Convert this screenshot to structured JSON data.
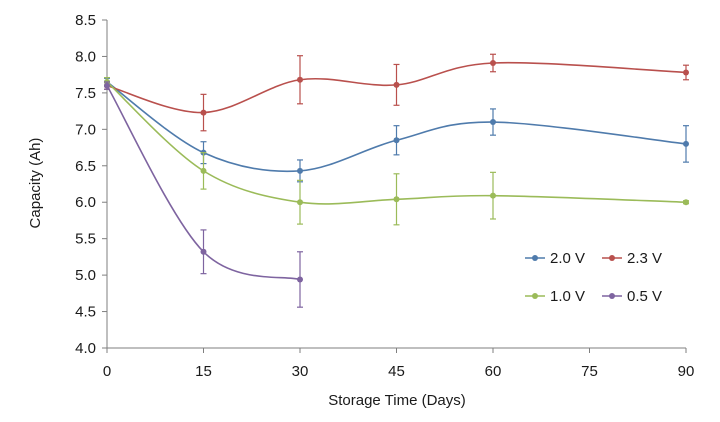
{
  "chart_data": {
    "type": "line",
    "xlabel": "Storage Time (Days)",
    "ylabel": "Capacity (Ah)",
    "xlim": [
      0,
      90
    ],
    "ylim": [
      4.0,
      8.5
    ],
    "x_ticks": [
      0,
      15,
      30,
      45,
      60,
      75,
      90
    ],
    "y_ticks": [
      "4.0",
      "4.5",
      "5.0",
      "5.5",
      "6.0",
      "6.5",
      "7.0",
      "7.5",
      "8.0",
      "8.5"
    ],
    "grid": false,
    "smooth": true,
    "legend_placement": "bottom-right",
    "series": [
      {
        "name": "2.0 V",
        "color": "#4f7bac",
        "x": [
          0,
          15,
          30,
          45,
          60,
          90
        ],
        "y": [
          7.65,
          6.68,
          6.43,
          6.85,
          7.1,
          6.8
        ],
        "err": [
          0.05,
          0.15,
          0.15,
          0.2,
          0.18,
          0.25
        ]
      },
      {
        "name": "2.3 V",
        "color": "#b9504d",
        "x": [
          0,
          15,
          30,
          45,
          60,
          90
        ],
        "y": [
          7.6,
          7.23,
          7.68,
          7.61,
          7.91,
          7.78
        ],
        "err": [
          0.05,
          0.25,
          0.33,
          0.28,
          0.12,
          0.1
        ]
      },
      {
        "name": "1.0 V",
        "color": "#9bbb59",
        "x": [
          0,
          15,
          30,
          45,
          60,
          90
        ],
        "y": [
          7.65,
          6.43,
          6.0,
          6.04,
          6.09,
          6.0
        ],
        "err": [
          0.06,
          0.25,
          0.3,
          0.35,
          0.32,
          0.02
        ]
      },
      {
        "name": "0.5 V",
        "color": "#7e64a0",
        "x": [
          0,
          15,
          30
        ],
        "y": [
          7.6,
          5.32,
          4.94
        ],
        "err": [
          0.05,
          0.3,
          0.38
        ]
      }
    ]
  }
}
